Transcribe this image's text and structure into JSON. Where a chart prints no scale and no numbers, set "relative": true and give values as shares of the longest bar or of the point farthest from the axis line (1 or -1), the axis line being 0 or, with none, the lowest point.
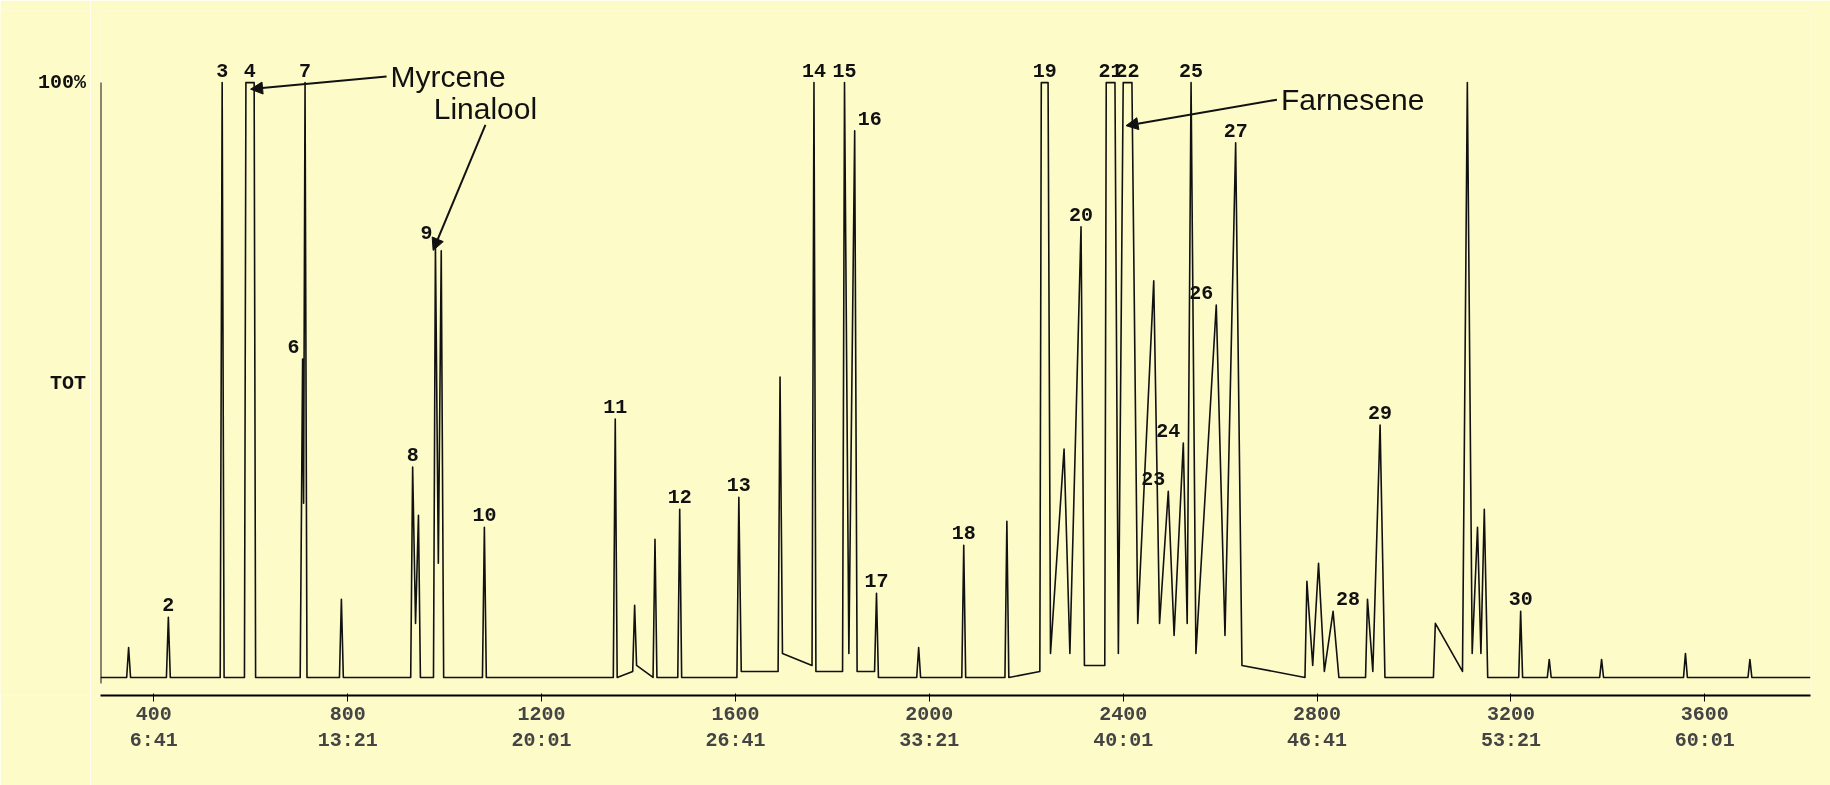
{
  "chart_data": {
    "type": "line",
    "relative": true,
    "color": "#111111",
    "marker": "none",
    "grid": false,
    "xlim": [
      290,
      3818
    ],
    "xticks": [
      400,
      800,
      1200,
      1600,
      2000,
      2400,
      2800,
      3200,
      3600
    ],
    "x2lim": [
      4.85,
      63.65
    ],
    "x2ticks": [
      {
        "value": 6.683,
        "label": "6:41"
      },
      {
        "value": 13.35,
        "label": "13:21"
      },
      {
        "value": 20.017,
        "label": "20:01"
      },
      {
        "value": 26.683,
        "label": "26:41"
      },
      {
        "value": 33.35,
        "label": "33:21"
      },
      {
        "value": 40.017,
        "label": "40:01"
      },
      {
        "value": 46.683,
        "label": "46:41"
      },
      {
        "value": 53.35,
        "label": "53:21"
      },
      {
        "value": 60.017,
        "label": "60:01"
      }
    ],
    "x": [
      290,
      344,
      348,
      352,
      426,
      430,
      434,
      537,
      541,
      545,
      587,
      590,
      607,
      610,
      702,
      707,
      709,
      712,
      716,
      783,
      787,
      791,
      930,
      934,
      940,
      946,
      950,
      977,
      981,
      987,
      993,
      998,
      1078,
      1082,
      1086,
      1348,
      1352,
      1356,
      1388,
      1392,
      1396,
      1430,
      1434,
      1438,
      1481,
      1485,
      1489,
      1603,
      1607,
      1612,
      1688,
      1692,
      1697,
      1758,
      1762,
      1766,
      1821,
      1825,
      1834,
      1846,
      1851,
      1887,
      1891,
      1895,
      1974,
      1978,
      1982,
      2067,
      2071,
      2075,
      2156,
      2160,
      2164,
      2228,
      2231,
      2245,
      2250,
      2278,
      2290,
      2313,
      2320,
      2362,
      2365,
      2383,
      2390,
      2400,
      2418,
      2430,
      2463,
      2475,
      2493,
      2505,
      2524,
      2532,
      2540,
      2550,
      2592,
      2610,
      2632,
      2645,
      2775,
      2779,
      2791,
      2803,
      2815,
      2833,
      2845,
      2900,
      2904,
      2915,
      2930,
      2940,
      3040,
      3044,
      3100,
      3110,
      3120,
      3131,
      3138,
      3145,
      3152,
      3216,
      3220,
      3224,
      3275,
      3279,
      3283,
      3383,
      3387,
      3391,
      3556,
      3560,
      3564,
      3689,
      3693,
      3697,
      3818
    ],
    "values": [
      0.01,
      0.01,
      0.06,
      0.01,
      0.01,
      0.11,
      0.01,
      0.01,
      1.0,
      0.01,
      0.01,
      1.0,
      1.0,
      0.01,
      0.01,
      0.54,
      0.3,
      1.0,
      0.01,
      0.01,
      0.14,
      0.01,
      0.01,
      0.36,
      0.1,
      0.28,
      0.01,
      0.01,
      0.73,
      0.2,
      0.72,
      0.01,
      0.01,
      0.26,
      0.01,
      0.01,
      0.44,
      0.01,
      0.02,
      0.13,
      0.03,
      0.01,
      0.24,
      0.01,
      0.01,
      0.29,
      0.01,
      0.01,
      0.31,
      0.02,
      0.02,
      0.51,
      0.05,
      0.03,
      1.0,
      0.02,
      0.02,
      1.0,
      0.05,
      0.92,
      0.02,
      0.02,
      0.15,
      0.01,
      0.01,
      0.06,
      0.01,
      0.01,
      0.23,
      0.01,
      0.01,
      0.27,
      0.01,
      0.02,
      1.0,
      1.0,
      0.05,
      0.39,
      0.05,
      0.76,
      0.03,
      0.03,
      1.0,
      1.0,
      0.05,
      1.0,
      1.0,
      0.1,
      0.67,
      0.1,
      0.32,
      0.08,
      0.4,
      0.1,
      1.0,
      0.05,
      0.63,
      0.08,
      0.9,
      0.03,
      0.01,
      0.17,
      0.03,
      0.2,
      0.02,
      0.12,
      0.01,
      0.01,
      0.14,
      0.02,
      0.43,
      0.01,
      0.01,
      0.1,
      0.02,
      1.0,
      0.05,
      0.26,
      0.05,
      0.29,
      0.01,
      0.01,
      0.12,
      0.01,
      0.01,
      0.04,
      0.01,
      0.01,
      0.04,
      0.01,
      0.01,
      0.05,
      0.01,
      0.01,
      0.04,
      0.01,
      0.01
    ],
    "annotations": [
      "100%",
      "TOT",
      {
        "text": "Myrcene",
        "x": 612,
        "y": 0.99
      },
      {
        "text": "Linalool",
        "x": 981,
        "y": 0.73
      },
      {
        "text": "Farnesene",
        "x": 2418,
        "y": 0.93
      },
      {
        "text": "2",
        "x": 430,
        "y": 0.11
      },
      {
        "text": "3",
        "x": 541,
        "y": 1.0
      },
      {
        "text": "4",
        "x": 598,
        "y": 1.0
      },
      {
        "text": "6",
        "x": 707,
        "y": 0.54
      },
      {
        "text": "7",
        "x": 712,
        "y": 1.0
      },
      {
        "text": "8",
        "x": 934,
        "y": 0.36
      },
      {
        "text": "9",
        "x": 981,
        "y": 0.73
      },
      {
        "text": "10",
        "x": 1082,
        "y": 0.26
      },
      {
        "text": "11",
        "x": 1352,
        "y": 0.44
      },
      {
        "text": "12",
        "x": 1485,
        "y": 0.29
      },
      {
        "text": "13",
        "x": 1607,
        "y": 0.31
      },
      {
        "text": "14",
        "x": 1762,
        "y": 1.0
      },
      {
        "text": "15",
        "x": 1825,
        "y": 1.0
      },
      {
        "text": "16",
        "x": 1846,
        "y": 0.92
      },
      {
        "text": "17",
        "x": 1891,
        "y": 0.15
      },
      {
        "text": "18",
        "x": 2071,
        "y": 0.23
      },
      {
        "text": "19",
        "x": 2238,
        "y": 1.0
      },
      {
        "text": "20",
        "x": 2313,
        "y": 0.76
      },
      {
        "text": "21",
        "x": 2374,
        "y": 1.0
      },
      {
        "text": "22",
        "x": 2409,
        "y": 1.0
      },
      {
        "text": "23",
        "x": 2493,
        "y": 0.32
      },
      {
        "text": "24",
        "x": 2524,
        "y": 0.4
      },
      {
        "text": "25",
        "x": 2540,
        "y": 1.0
      },
      {
        "text": "26",
        "x": 2592,
        "y": 0.63
      },
      {
        "text": "27",
        "x": 2632,
        "y": 0.9
      },
      {
        "text": "28",
        "x": 2833,
        "y": 0.12
      },
      {
        "text": "29",
        "x": 2930,
        "y": 0.43
      },
      {
        "text": "30",
        "x": 3220,
        "y": 0.12
      }
    ]
  }
}
